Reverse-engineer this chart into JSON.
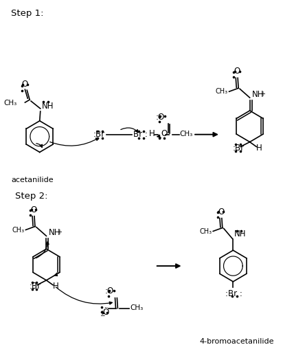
{
  "bg_color": "#ffffff",
  "step1_label": "Step 1:",
  "step2_label": "Step 2:",
  "acetanilide_label": "acetanilide",
  "product_label": "4-bromoacetanilide",
  "fig_width": 4.12,
  "fig_height": 5.06,
  "dpi": 100
}
